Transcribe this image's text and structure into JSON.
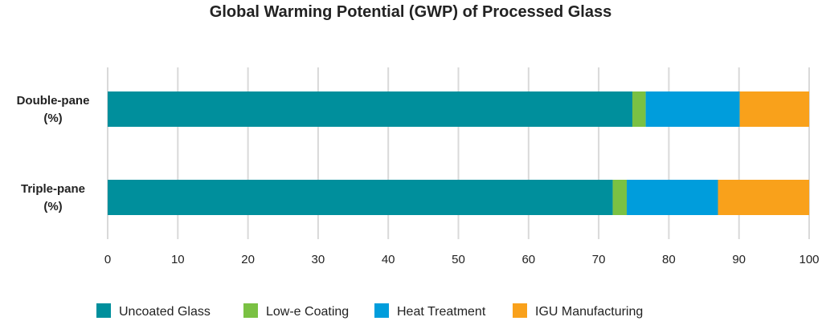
{
  "chart_data": {
    "type": "bar",
    "orientation": "horizontal",
    "stacked": true,
    "title": "Global Warming Potential (GWP) of Processed Glass",
    "categories": [
      [
        "Double-pane",
        "(%)"
      ],
      [
        "Triple-pane",
        "(%)"
      ]
    ],
    "series": [
      {
        "name": "Uncoated Glass",
        "color": "#008f9c",
        "values": [
          74.8,
          72
        ]
      },
      {
        "name": "Low-e Coating",
        "color": "#7ac143",
        "values": [
          1.9,
          2
        ]
      },
      {
        "name": "Heat Treatment",
        "color": "#009ddc",
        "values": [
          13.4,
          13
        ]
      },
      {
        "name": "IGU Manufacturing",
        "color": "#f9a11b",
        "values": [
          9.9,
          13
        ]
      }
    ],
    "xlim": [
      0,
      100
    ],
    "xticks": [
      0,
      10,
      20,
      30,
      40,
      50,
      60,
      70,
      80,
      90,
      100
    ],
    "grid": "vertical",
    "legend": "bottom"
  }
}
